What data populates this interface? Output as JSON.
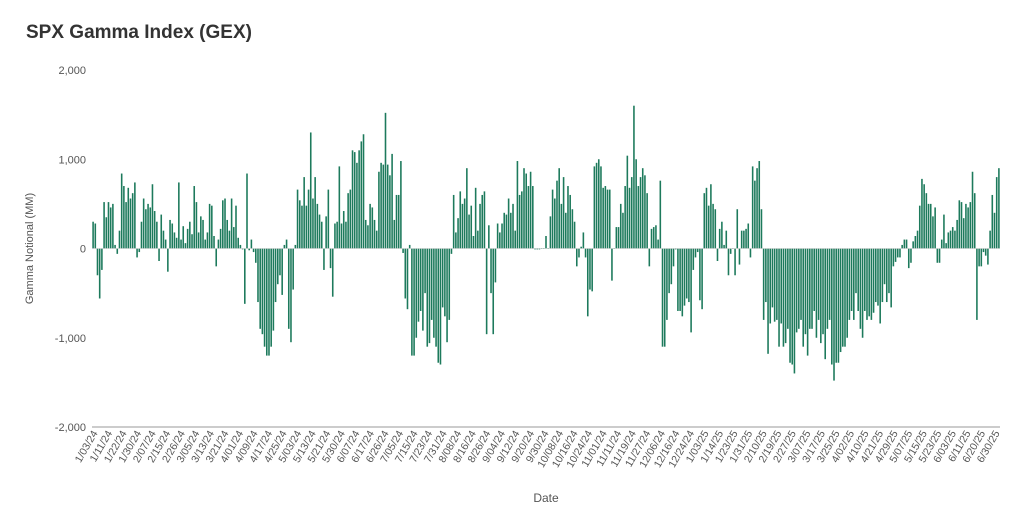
{
  "chart_data": {
    "type": "bar",
    "title": "SPX Gamma Index (GEX)",
    "xlabel": "Date",
    "ylabel": "Gamma Notional (MM)",
    "ylim": [
      -2000,
      2000
    ],
    "y_ticks": [
      "2,000",
      "1,000",
      "0",
      "-1,000",
      "-2,000"
    ],
    "y_tick_values": [
      2000,
      1000,
      0,
      -1000,
      -2000
    ],
    "x_tick_labels": [
      "1/03/24",
      "1/11/24",
      "1/22/24",
      "1/30/24",
      "2/07/24",
      "2/15/24",
      "2/26/24",
      "3/05/24",
      "3/13/24",
      "3/21/24",
      "4/01/24",
      "4/09/24",
      "4/17/24",
      "4/25/24",
      "5/03/24",
      "5/13/24",
      "5/21/24",
      "5/30/24",
      "6/07/24",
      "6/17/24",
      "6/26/24",
      "7/05/24",
      "7/15/24",
      "7/23/24",
      "7/31/24",
      "8/08/24",
      "8/16/24",
      "8/26/24",
      "9/04/24",
      "9/12/24",
      "9/20/24",
      "9/30/24",
      "10/08/24",
      "10/16/24",
      "10/24/24",
      "11/01/24",
      "11/11/24",
      "11/19/24",
      "11/27/24",
      "12/06/24",
      "12/16/24",
      "12/24/24",
      "1/03/25",
      "1/14/25",
      "1/23/25",
      "1/31/25",
      "2/10/25",
      "2/19/25",
      "2/27/25",
      "3/07/25",
      "3/17/25",
      "3/25/25",
      "4/02/25",
      "4/10/25",
      "4/21/25",
      "4/29/25",
      "5/07/25",
      "5/15/25",
      "5/23/25",
      "6/03/25",
      "6/11/25",
      "6/20/25",
      "6/30/25"
    ],
    "grid": false,
    "legend": "none",
    "colors": {
      "bar": "#1d7a5c",
      "axis": "#999999",
      "text": "#555555",
      "title": "#333333"
    },
    "values": [
      300,
      280,
      -300,
      -560,
      -240,
      520,
      350,
      520,
      460,
      500,
      40,
      -60,
      200,
      840,
      700,
      520,
      680,
      560,
      620,
      740,
      -100,
      -40,
      300,
      560,
      440,
      500,
      460,
      720,
      420,
      300,
      -140,
      380,
      200,
      100,
      -260,
      320,
      280,
      180,
      120,
      740,
      100,
      250,
      60,
      220,
      300,
      160,
      700,
      520,
      180,
      360,
      320,
      100,
      180,
      500,
      480,
      140,
      -200,
      100,
      220,
      540,
      560,
      320,
      200,
      560,
      240,
      480,
      120,
      40,
      -10,
      -620,
      840,
      -20,
      100,
      -40,
      -160,
      -600,
      -900,
      -960,
      -1100,
      -1200,
      -1200,
      -1100,
      -920,
      -600,
      -400,
      -300,
      -520,
      40,
      100,
      -900,
      -1050,
      -460,
      40,
      660,
      540,
      480,
      800,
      480,
      660,
      1300,
      560,
      800,
      500,
      380,
      300,
      -240,
      360,
      660,
      -220,
      -540,
      280,
      300,
      920,
      280,
      420,
      300,
      620,
      660,
      1100,
      1080,
      960,
      1100,
      1200,
      1280,
      320,
      260,
      500,
      460,
      320,
      200,
      860,
      960,
      940,
      1520,
      940,
      820,
      1060,
      320,
      600,
      600,
      980,
      -50,
      -560,
      -680,
      40,
      -1200,
      -1200,
      -1000,
      -820,
      -700,
      -920,
      -500,
      -1100,
      -1060,
      -800,
      -1000,
      -1100,
      -1280,
      -1300,
      -660,
      -760,
      -1050,
      -800,
      -60,
      600,
      180,
      340,
      640,
      500,
      560,
      900,
      380,
      480,
      140,
      680,
      200,
      500,
      600,
      640,
      -960,
      260,
      -500,
      -960,
      -380,
      280,
      180,
      280,
      400,
      380,
      560,
      400,
      500,
      200,
      980,
      600,
      640,
      900,
      840,
      700,
      860,
      700,
      -10,
      -10,
      -10,
      0,
      0,
      140,
      0,
      360,
      660,
      560,
      760,
      900,
      500,
      800,
      400,
      700,
      600,
      440,
      300,
      -200,
      -100,
      20,
      180,
      -100,
      -760,
      -460,
      -480,
      920,
      960,
      1000,
      920,
      680,
      700,
      660,
      660,
      -360,
      0,
      240,
      240,
      500,
      400,
      700,
      1040,
      680,
      800,
      1600,
      1000,
      700,
      800,
      900,
      820,
      620,
      -200,
      220,
      240,
      260,
      100,
      760,
      -1100,
      -1100,
      -800,
      -500,
      -400,
      -200,
      -10,
      -700,
      -700,
      -760,
      -640,
      -560,
      -600,
      -940,
      -240,
      -100,
      -40,
      -580,
      -680,
      620,
      680,
      480,
      720,
      500,
      440,
      -140,
      220,
      300,
      40,
      200,
      -300,
      -60,
      0,
      -300,
      440,
      -180,
      200,
      200,
      220,
      280,
      -100,
      920,
      760,
      900,
      980,
      440,
      -800,
      -600,
      -1180,
      -840,
      -660,
      -820,
      -800,
      -1100,
      -840,
      -1100,
      -1060,
      -900,
      -1280,
      -1300,
      -1400,
      -940,
      -900,
      -800,
      -1100,
      -960,
      -1200,
      -900,
      -900,
      -700,
      -1000,
      -800,
      -1060,
      -960,
      -1240,
      -900,
      -800,
      -1300,
      -1480,
      -1280,
      -1280,
      -1160,
      -1100,
      -1100,
      -1000,
      -800,
      -700,
      -800,
      -500,
      -700,
      -900,
      -1000,
      -700,
      -800,
      -760,
      -800,
      -720,
      -600,
      -640,
      -840,
      -600,
      -400,
      -600,
      -500,
      -660,
      -200,
      -150,
      -100,
      -100,
      40,
      100,
      100,
      -220,
      -160,
      80,
      140,
      200,
      480,
      780,
      720,
      620,
      500,
      500,
      360,
      460,
      -160,
      -160,
      100,
      380,
      60,
      180,
      200,
      240,
      200,
      320,
      540,
      520,
      340,
      500,
      460,
      520,
      860,
      620,
      -800,
      -200,
      -200,
      -40,
      -80,
      -180,
      200,
      600,
      400,
      800,
      900
    ]
  }
}
